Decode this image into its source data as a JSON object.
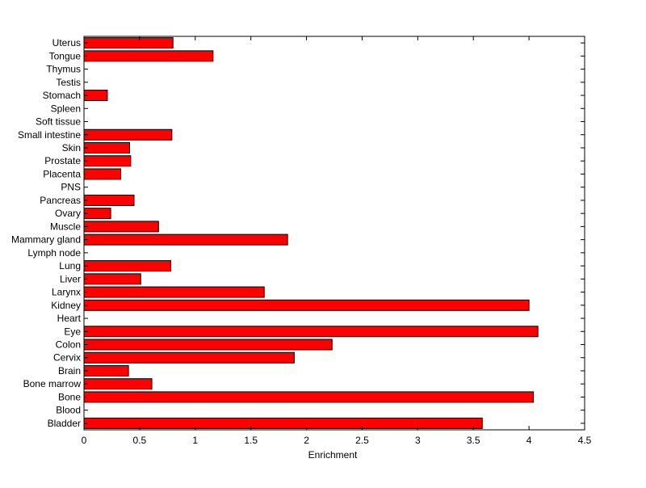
{
  "chart_data": {
    "type": "bar",
    "orientation": "horizontal",
    "title": "",
    "xlabel": "Enrichment",
    "ylabel": "",
    "xlim": [
      0,
      4.5
    ],
    "xticks": [
      "0",
      "0.5",
      "1",
      "1.5",
      "2",
      "2.5",
      "3",
      "3.5",
      "4",
      "4.5"
    ],
    "grid": false,
    "bar_color": "#ff0000",
    "bar_edge_color": "#000000",
    "categories": [
      "Bladder",
      "Blood",
      "Bone",
      "Bone marrow",
      "Brain",
      "Cervix",
      "Colon",
      "Eye",
      "Heart",
      "Kidney",
      "Larynx",
      "Liver",
      "Lung",
      "Lymph node",
      "Mammary gland",
      "Muscle",
      "Ovary",
      "Pancreas",
      "PNS",
      "Placenta",
      "Prostate",
      "Skin",
      "Small intestine",
      "Soft tissue",
      "Spleen",
      "Stomach",
      "Testis",
      "Thymus",
      "Tongue",
      "Uterus"
    ],
    "values": [
      3.58,
      0,
      4.04,
      0.61,
      0.4,
      1.89,
      2.23,
      4.08,
      0,
      4.0,
      1.62,
      0.51,
      0.78,
      0,
      1.83,
      0.67,
      0.24,
      0.45,
      0,
      0.33,
      0.42,
      0.41,
      0.79,
      0,
      0,
      0.21,
      0,
      0,
      1.16,
      0.8
    ]
  }
}
